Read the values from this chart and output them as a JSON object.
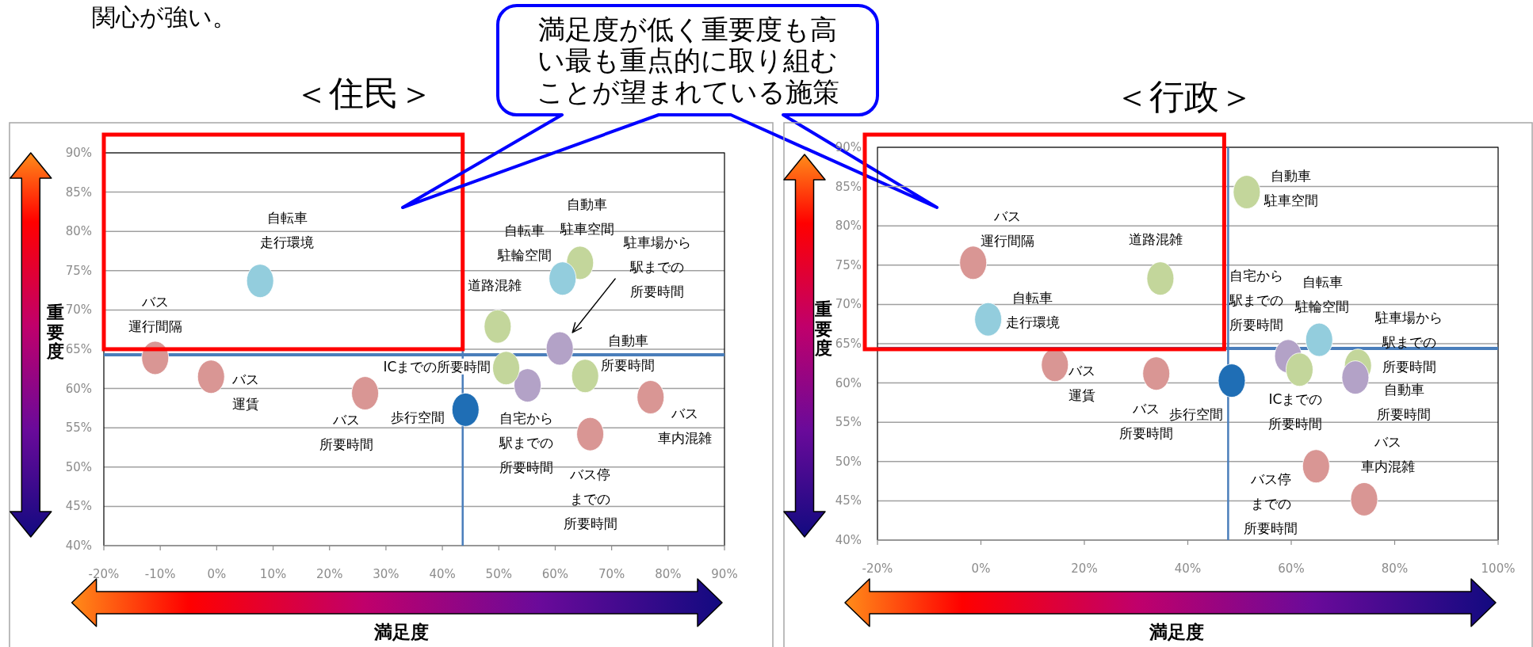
{
  "chart_data": [
    {
      "type": "scatter",
      "title": "＜住民＞",
      "xlabel": "満足度",
      "ylabel": "重要度",
      "annotations": [
        "関心が強い。",
        "満足度が低く重要度も高い最も重点的に取り組むことが望まれている施策"
      ],
      "xlim": [
        -20,
        90
      ],
      "ylim": [
        40,
        90
      ],
      "xticks": [
        {
          "value": -20,
          "label": "-20%"
        },
        {
          "value": -10,
          "label": "-10%"
        },
        {
          "value": 0,
          "label": "0%"
        },
        {
          "value": 10,
          "label": "10%"
        },
        {
          "value": 20,
          "label": "20%"
        },
        {
          "value": 30,
          "label": "30%"
        },
        {
          "value": 40,
          "label": "40%"
        },
        {
          "value": 50,
          "label": "50%"
        },
        {
          "value": 60,
          "label": "60%"
        },
        {
          "value": 70,
          "label": "70%"
        },
        {
          "value": 80,
          "label": "80%"
        },
        {
          "value": 90,
          "label": "90%"
        }
      ],
      "yticks": [
        {
          "value": 40,
          "label": "40%"
        },
        {
          "value": 45,
          "label": "45%"
        },
        {
          "value": 50,
          "label": "50%"
        },
        {
          "value": 55,
          "label": "55%"
        },
        {
          "value": 60,
          "label": "60%"
        },
        {
          "value": 65,
          "label": "65%"
        },
        {
          "value": 70,
          "label": "70%"
        },
        {
          "value": 75,
          "label": "75%"
        },
        {
          "value": 80,
          "label": "80%"
        },
        {
          "value": 85,
          "label": "85%"
        },
        {
          "value": 90,
          "label": "90%"
        }
      ],
      "grid": "y",
      "marker": "circle",
      "ref_lines": [
        {
          "axis": "x",
          "value": 43.6,
          "color": "#4a7ebb"
        },
        {
          "axis": "y",
          "value": 64.3,
          "color": "#4a7ebb"
        }
      ],
      "series": [
        {
          "name": "自転車走行環境",
          "color": "#93cddd",
          "x": [
            7.7
          ],
          "values": [
            73.7
          ]
        },
        {
          "name": "バス運行間隔",
          "color": "#d99694",
          "x": [
            -10.9
          ],
          "values": [
            63.9
          ]
        },
        {
          "name": "バス運賃",
          "color": "#d99694",
          "x": [
            -1.0
          ],
          "values": [
            61.5
          ]
        },
        {
          "name": "バス所要時間",
          "color": "#d99694",
          "x": [
            26.3
          ],
          "values": [
            59.4
          ]
        },
        {
          "name": "歩行空間",
          "color": "#1f6eb5",
          "x": [
            44.1
          ],
          "values": [
            57.3
          ]
        },
        {
          "name": "道路混雑",
          "color": "#c3d69b",
          "x": [
            49.8
          ],
          "values": [
            67.9
          ]
        },
        {
          "name": "自動車駐車空間",
          "color": "#c3d69b",
          "x": [
            64.4
          ],
          "values": [
            76.0
          ]
        },
        {
          "name": "自転車駐輪空間",
          "color": "#93cddd",
          "x": [
            61.3
          ],
          "values": [
            74.0
          ]
        },
        {
          "name": "自宅から駅までの所要時間",
          "color": "#b3a2c7",
          "x": [
            55.1
          ],
          "values": [
            60.4
          ]
        },
        {
          "name": "ICまでの所要時間",
          "color": "#c3d69b",
          "x": [
            51.3
          ],
          "values": [
            62.6
          ]
        },
        {
          "name": "駐車場から駅までの所要時間",
          "color": "#b3a2c7",
          "x": [
            60.8
          ],
          "values": [
            65.1
          ]
        },
        {
          "name": "自動車所要時間",
          "color": "#c3d69b",
          "x": [
            65.3
          ],
          "values": [
            61.6
          ]
        },
        {
          "name": "バス車内混雑",
          "color": "#d99694",
          "x": [
            76.9
          ],
          "values": [
            58.9
          ]
        },
        {
          "name": "バス停までの所要時間",
          "color": "#d99694",
          "x": [
            66.2
          ],
          "values": [
            54.2
          ]
        }
      ]
    },
    {
      "type": "scatter",
      "title": "＜行政＞",
      "xlabel": "満足度",
      "ylabel": "重要度",
      "xlim": [
        -20,
        100
      ],
      "ylim": [
        40,
        90
      ],
      "xticks": [
        {
          "value": -20,
          "label": "-20%"
        },
        {
          "value": 0,
          "label": "0%"
        },
        {
          "value": 20,
          "label": "20%"
        },
        {
          "value": 40,
          "label": "40%"
        },
        {
          "value": 60,
          "label": "60%"
        },
        {
          "value": 80,
          "label": "80%"
        },
        {
          "value": 100,
          "label": "100%"
        }
      ],
      "yticks": [
        {
          "value": 40,
          "label": "40%"
        },
        {
          "value": 45,
          "label": "45%"
        },
        {
          "value": 50,
          "label": "50%"
        },
        {
          "value": 55,
          "label": "55%"
        },
        {
          "value": 60,
          "label": "60%"
        },
        {
          "value": 65,
          "label": "65%"
        },
        {
          "value": 70,
          "label": "70%"
        },
        {
          "value": 75,
          "label": "75%"
        },
        {
          "value": 80,
          "label": "80%"
        },
        {
          "value": 85,
          "label": "85%"
        },
        {
          "value": 90,
          "label": "90%"
        }
      ],
      "grid": "y",
      "marker": "circle",
      "ref_lines": [
        {
          "axis": "x",
          "value": 47.8,
          "color": "#4a7ebb"
        },
        {
          "axis": "y",
          "value": 64.4,
          "color": "#4a7ebb"
        }
      ],
      "series": [
        {
          "name": "自転車走行環境",
          "color": "#93cddd",
          "x": [
            1.4
          ],
          "values": [
            68.1
          ]
        },
        {
          "name": "バス運行間隔",
          "color": "#d99694",
          "x": [
            -1.5
          ],
          "values": [
            75.3
          ]
        },
        {
          "name": "バス運賃",
          "color": "#d99694",
          "x": [
            14.3
          ],
          "values": [
            62.3
          ]
        },
        {
          "name": "バス所要時間",
          "color": "#d99694",
          "x": [
            33.9
          ],
          "values": [
            61.2
          ]
        },
        {
          "name": "歩行空間",
          "color": "#1f6eb5",
          "x": [
            48.5
          ],
          "values": [
            60.3
          ]
        },
        {
          "name": "道路混雑",
          "color": "#c3d69b",
          "x": [
            34.7
          ],
          "values": [
            73.3
          ]
        },
        {
          "name": "自動車駐車空間",
          "color": "#c3d69b",
          "x": [
            51.4
          ],
          "values": [
            84.3
          ]
        },
        {
          "name": "自転車駐輪空間",
          "color": "#93cddd",
          "x": [
            65.4
          ],
          "values": [
            65.5
          ]
        },
        {
          "name": "自宅から駅までの所要時間",
          "color": "#b3a2c7",
          "x": [
            59.4
          ],
          "values": [
            63.4
          ]
        },
        {
          "name": "ICまでの所要時間",
          "color": "#c3d69b",
          "x": [
            61.6
          ],
          "values": [
            61.7
          ]
        },
        {
          "name": "駐車場から駅までの所要時間",
          "color": "#b3a2c7",
          "x": [
            72.4
          ],
          "values": [
            60.7
          ]
        },
        {
          "name": "自動車所要時間",
          "color": "#c3d69b",
          "x": [
            72.9
          ],
          "values": [
            62.2
          ]
        },
        {
          "name": "バス車内混雑",
          "color": "#d99694",
          "x": [
            74.1
          ],
          "values": [
            45.2
          ]
        },
        {
          "name": "バス停までの所要時間",
          "color": "#d99694",
          "x": [
            64.8
          ],
          "values": [
            49.4
          ]
        }
      ]
    }
  ]
}
